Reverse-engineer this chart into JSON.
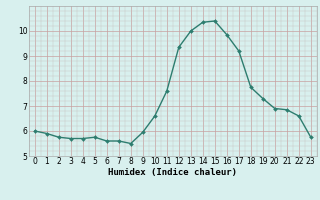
{
  "x": [
    0,
    1,
    2,
    3,
    4,
    5,
    6,
    7,
    8,
    9,
    10,
    11,
    12,
    13,
    14,
    15,
    16,
    17,
    18,
    19,
    20,
    21,
    22,
    23
  ],
  "y": [
    6.0,
    5.9,
    5.75,
    5.7,
    5.7,
    5.75,
    5.6,
    5.6,
    5.5,
    5.95,
    6.6,
    7.6,
    9.35,
    10.0,
    10.35,
    10.4,
    9.85,
    9.2,
    7.75,
    7.3,
    6.9,
    6.85,
    6.6,
    5.75
  ],
  "line_color": "#2d7d6f",
  "marker": "D",
  "marker_size": 2.0,
  "bg_color": "#d8f0ee",
  "grid_color": "#c8dedd",
  "xlabel": "Humidex (Indice chaleur)",
  "ylim": [
    5,
    11
  ],
  "xlim": [
    -0.5,
    23.5
  ],
  "yticks": [
    5,
    6,
    7,
    8,
    9,
    10
  ],
  "xticks": [
    0,
    1,
    2,
    3,
    4,
    5,
    6,
    7,
    8,
    9,
    10,
    11,
    12,
    13,
    14,
    15,
    16,
    17,
    18,
    19,
    20,
    21,
    22,
    23
  ],
  "tick_fontsize": 5.5,
  "xlabel_fontsize": 6.5,
  "linewidth": 1.0
}
